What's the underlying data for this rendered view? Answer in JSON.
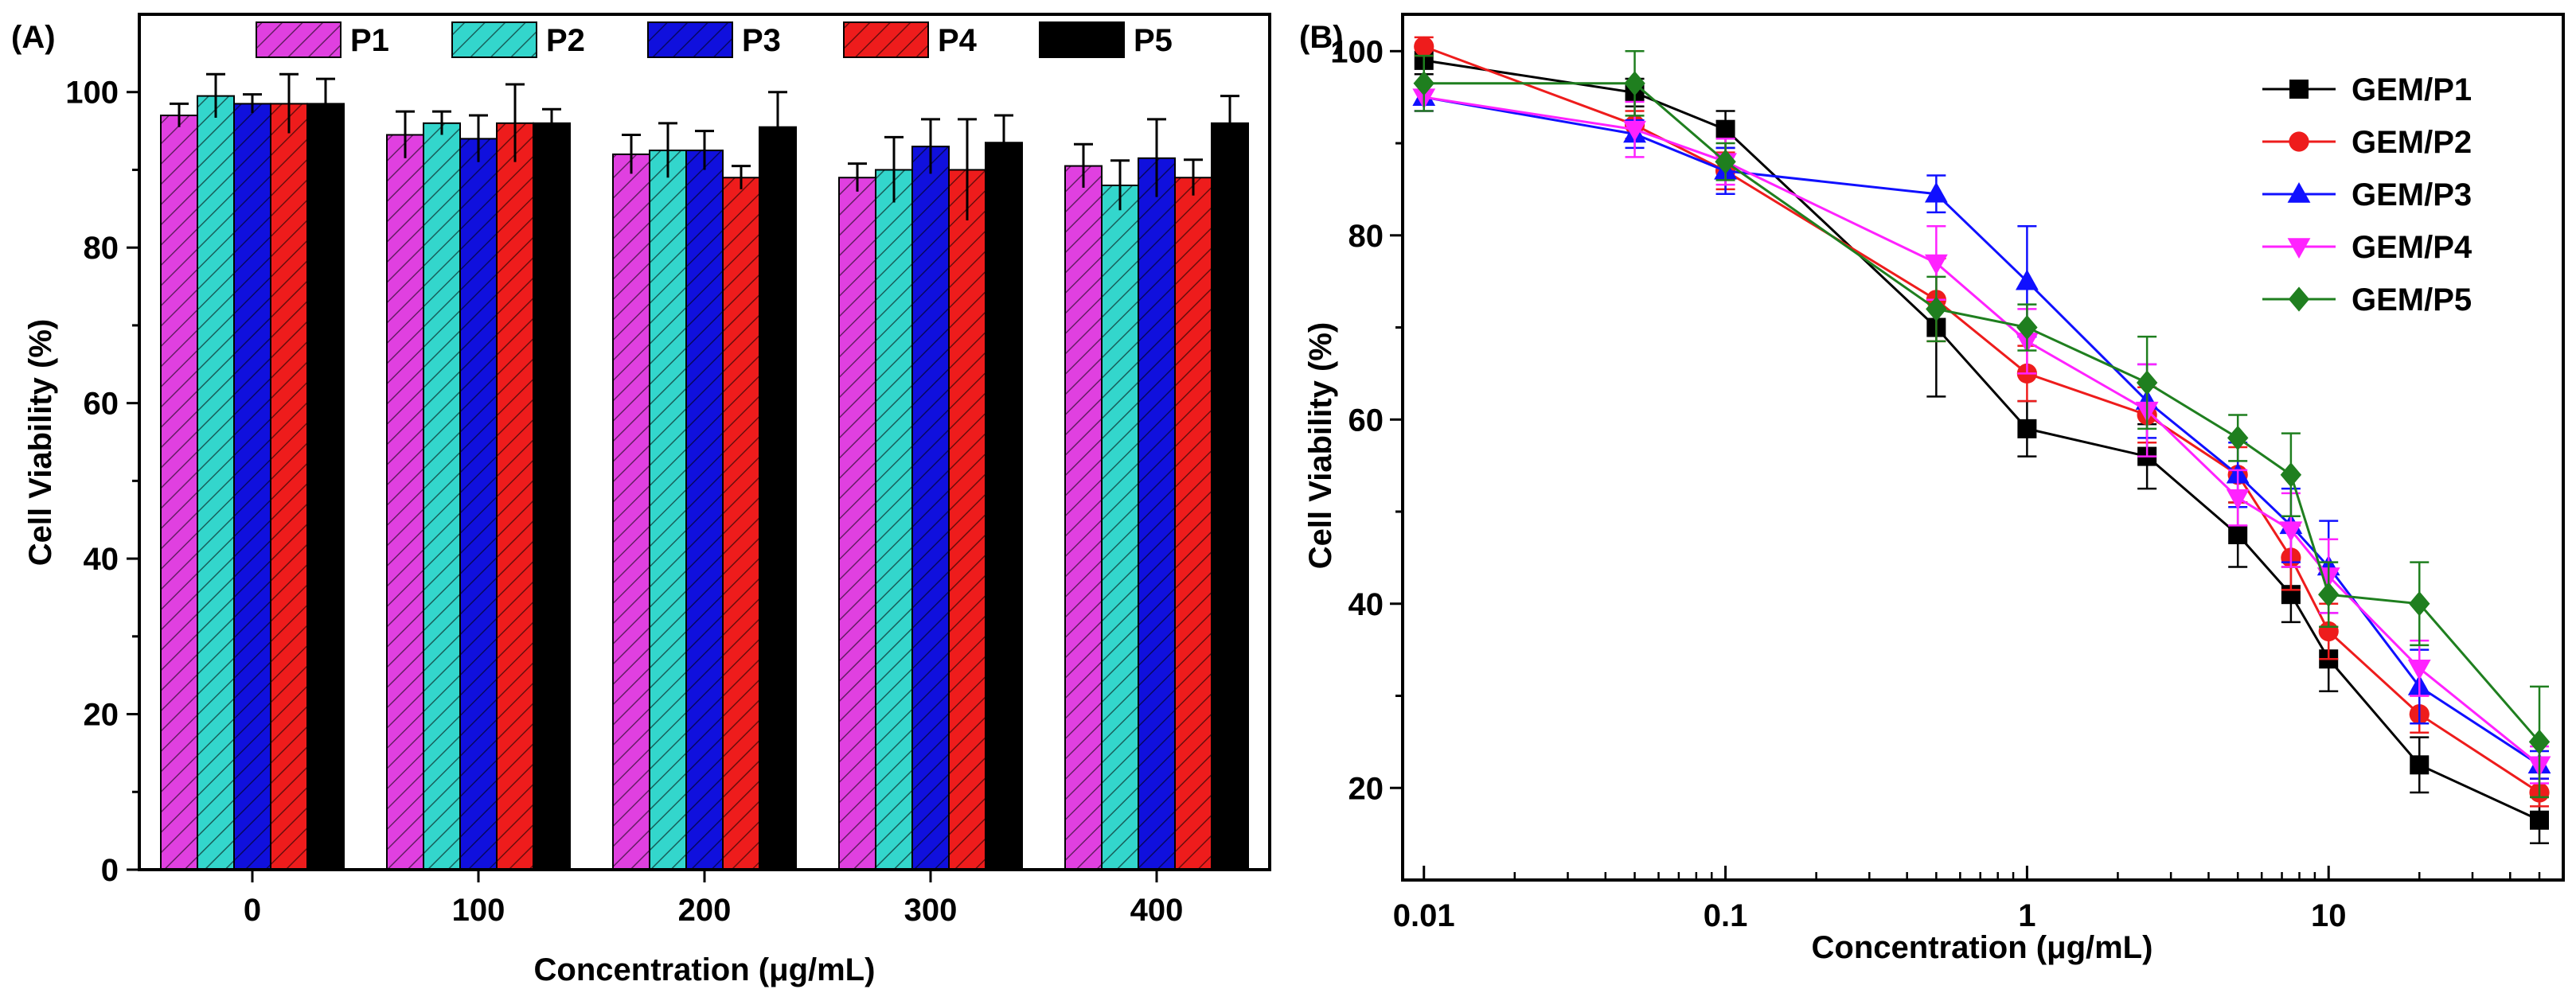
{
  "chart_data": [
    {
      "type": "bar",
      "panel_label": "(A)",
      "xlabel": "Concentration (μg/mL)",
      "ylabel": "Cell Viability (%)",
      "categories": [
        "0",
        "100",
        "200",
        "300",
        "400"
      ],
      "ylim": [
        0,
        110
      ],
      "yticks": [
        "0",
        "20",
        "40",
        "60",
        "80",
        "100"
      ],
      "legend_position": "top",
      "series": [
        {
          "name": "P1",
          "color": "#e040e0",
          "hatch": true,
          "values": [
            97.0,
            94.5,
            92.0,
            89.0,
            90.5
          ],
          "errors": [
            1.5,
            3.0,
            2.5,
            1.8,
            2.8
          ]
        },
        {
          "name": "P2",
          "color": "#33d6cc",
          "hatch": true,
          "values": [
            99.5,
            96.0,
            92.5,
            90.0,
            88.0
          ],
          "errors": [
            2.8,
            1.5,
            3.5,
            4.2,
            3.2
          ]
        },
        {
          "name": "P3",
          "color": "#1010dd",
          "hatch": true,
          "values": [
            98.5,
            94.0,
            92.5,
            93.0,
            91.5
          ],
          "errors": [
            1.2,
            3.0,
            2.5,
            3.5,
            5.0
          ]
        },
        {
          "name": "P4",
          "color": "#ee1c1c",
          "hatch": true,
          "values": [
            98.5,
            96.0,
            89.0,
            90.0,
            89.0
          ],
          "errors": [
            3.8,
            5.0,
            1.5,
            6.5,
            2.3
          ]
        },
        {
          "name": "P5",
          "color": "#000000",
          "hatch": false,
          "values": [
            98.5,
            96.0,
            95.5,
            93.5,
            96.0
          ],
          "errors": [
            3.2,
            1.8,
            4.5,
            3.5,
            3.5
          ]
        }
      ]
    },
    {
      "type": "line",
      "panel_label": "(B)",
      "xlabel": "Concentration (μg/mL)",
      "ylabel": "Cell Viability (%)",
      "xscale": "log",
      "xlim": [
        0.0085,
        60
      ],
      "ylim": [
        10,
        104
      ],
      "xticks": [
        {
          "value": 0.01,
          "label": "0.01"
        },
        {
          "value": 0.1,
          "label": "0.1"
        },
        {
          "value": 1,
          "label": "1"
        },
        {
          "value": 10,
          "label": "10"
        }
      ],
      "yticks": [
        "20",
        "40",
        "60",
        "80",
        "100"
      ],
      "legend_position": "top-right",
      "x": [
        0.01,
        0.05,
        0.1,
        0.5,
        1,
        2.5,
        5,
        7.5,
        10,
        20,
        50
      ],
      "series": [
        {
          "name": "GEM/P1",
          "color": "#000000",
          "marker": "square",
          "values": [
            99.0,
            95.5,
            91.5,
            70.0,
            59.0,
            56.0,
            47.5,
            41.0,
            34.0,
            22.5,
            16.5
          ],
          "errors": [
            1.5,
            1.5,
            2.0,
            7.5,
            3.0,
            3.5,
            3.5,
            3.0,
            3.5,
            3.0,
            2.5
          ]
        },
        {
          "name": "GEM/P2",
          "color": "#ee1c1c",
          "marker": "circle",
          "values": [
            100.5,
            92.0,
            87.0,
            73.0,
            65.0,
            60.5,
            54.0,
            45.0,
            37.0,
            28.0,
            19.5
          ],
          "errors": [
            1.0,
            1.5,
            2.0,
            4.5,
            3.0,
            3.0,
            3.0,
            3.5,
            3.0,
            2.0,
            1.5
          ]
        },
        {
          "name": "GEM/P3",
          "color": "#1010ff",
          "marker": "triangle-up",
          "values": [
            95.0,
            91.0,
            87.0,
            84.5,
            75.0,
            62.0,
            54.0,
            48.5,
            44.0,
            31.0,
            22.5
          ],
          "errors": [
            1.5,
            1.5,
            2.5,
            2.0,
            6.0,
            4.0,
            3.5,
            4.0,
            5.0,
            4.0,
            1.5
          ]
        },
        {
          "name": "GEM/P4",
          "color": "#ff22ff",
          "marker": "triangle-down",
          "values": [
            95.0,
            91.5,
            88.0,
            77.0,
            68.5,
            61.0,
            51.5,
            48.0,
            43.0,
            33.0,
            22.5
          ],
          "errors": [
            1.5,
            3.0,
            2.5,
            4.0,
            3.5,
            5.0,
            3.0,
            4.0,
            4.0,
            3.0,
            2.0
          ]
        },
        {
          "name": "GEM/P5",
          "color": "#1f7f1f",
          "marker": "diamond",
          "values": [
            96.5,
            96.5,
            88.0,
            72.0,
            70.0,
            64.0,
            58.0,
            54.0,
            41.0,
            40.0,
            25.0
          ],
          "errors": [
            3.0,
            3.5,
            2.0,
            3.5,
            2.5,
            5.0,
            2.5,
            4.5,
            3.5,
            4.5,
            6.0
          ]
        }
      ]
    }
  ]
}
